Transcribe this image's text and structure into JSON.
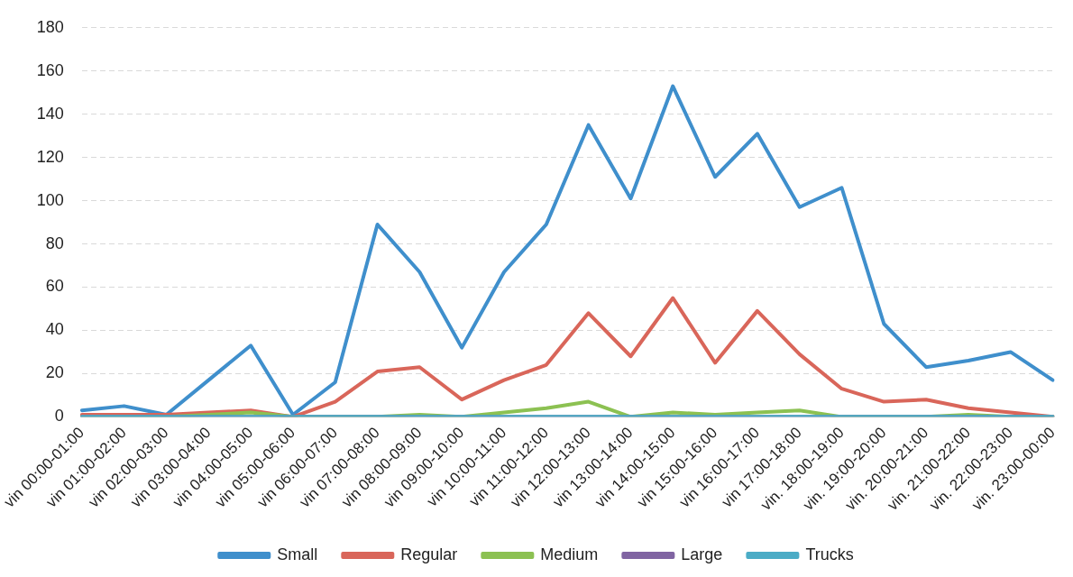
{
  "chart_data": {
    "type": "line",
    "categories": [
      "vin 00:00-01:00",
      "vin 01:00-02:00",
      "vin 02:00-03:00",
      "vin 03:00-04:00",
      "vin 04:00-05:00",
      "vin 05:00-06:00",
      "vin 06:00-07:00",
      "vin 07:00-08:00",
      "vin 08:00-09:00",
      "vin 09:00-10:00",
      "vin 10:00-11:00",
      "vin 11:00-12:00",
      "vin 12:00-13:00",
      "vin 13:00-14:00",
      "vin 14:00-15:00",
      "vin 15:00-16:00",
      "vin 16:00-17:00",
      "vin 17:00-18:00",
      "vin. 18:00-19:00",
      "vin. 19:00-20:00",
      "vin. 20:00-21:00",
      "vin. 21:00-22:00",
      "vin. 22:00-23:00",
      "vin. 23:00-00:00"
    ],
    "series": [
      {
        "name": "Small",
        "color": "#3f8fcc",
        "values": [
          3,
          5,
          1,
          17,
          33,
          1,
          16,
          89,
          67,
          32,
          67,
          89,
          135,
          101,
          153,
          111,
          131,
          97,
          106,
          43,
          23,
          26,
          30,
          17
        ]
      },
      {
        "name": "Regular",
        "color": "#d9665a",
        "values": [
          1,
          1,
          1,
          2,
          3,
          0,
          7,
          21,
          23,
          8,
          17,
          24,
          48,
          28,
          55,
          25,
          49,
          29,
          13,
          7,
          8,
          4,
          2,
          0
        ]
      },
      {
        "name": "Medium",
        "color": "#8cc152",
        "values": [
          0,
          0,
          0,
          1,
          2,
          0,
          0,
          0,
          1,
          0,
          2,
          4,
          7,
          0,
          2,
          1,
          2,
          3,
          0,
          0,
          0,
          1,
          0,
          0
        ]
      },
      {
        "name": "Large",
        "color": "#8064a2",
        "values": [
          0,
          0,
          0,
          0,
          0,
          0,
          0,
          0,
          0,
          0,
          0,
          0,
          0,
          0,
          0,
          0,
          0,
          0,
          0,
          0,
          0,
          0,
          0,
          0
        ]
      },
      {
        "name": "Trucks",
        "color": "#4bacc6",
        "values": [
          0,
          0,
          0,
          0,
          0,
          0,
          0,
          0,
          0,
          0,
          0,
          0,
          0,
          0,
          0,
          0,
          0,
          0,
          0,
          0,
          0,
          0,
          0,
          0
        ]
      }
    ],
    "ylim": [
      0,
      180
    ],
    "yticks": [
      0,
      20,
      40,
      60,
      80,
      100,
      120,
      140,
      160,
      180
    ],
    "grid": "y",
    "legend": "bottom",
    "marker": "none",
    "line_style": "solid"
  }
}
